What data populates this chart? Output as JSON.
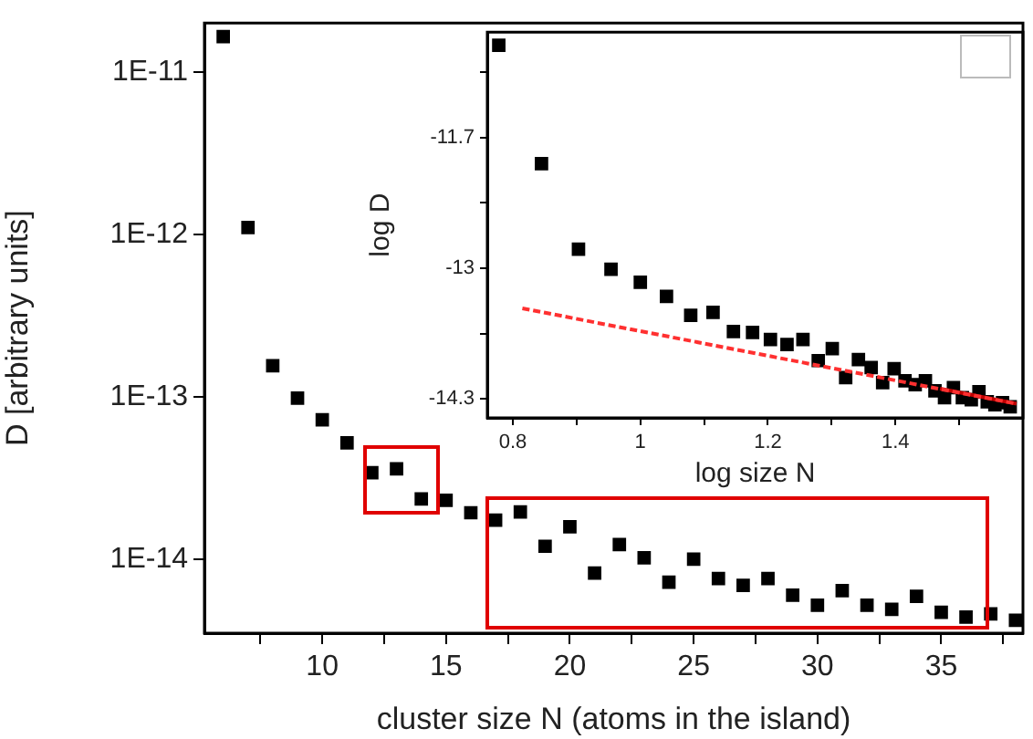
{
  "chart_data": [
    {
      "type": "scatter",
      "xlabel": "cluster size N (atoms in the island)",
      "ylabel": "D [arbitrary units]",
      "x": [
        6,
        7,
        8,
        9,
        10,
        11,
        12,
        13,
        14,
        15,
        16,
        17,
        18,
        19,
        20,
        21,
        22,
        23,
        24,
        25,
        26,
        27,
        28,
        29,
        30,
        31,
        32,
        33,
        34,
        35,
        36,
        37,
        38
      ],
      "values": [
        1.65e-11,
        1.1e-12,
        1.55e-13,
        9.8e-14,
        7.2e-14,
        5.2e-14,
        3.4e-14,
        3.6e-14,
        2.35e-14,
        2.3e-14,
        1.93e-14,
        1.74e-14,
        1.95e-14,
        1.2e-14,
        1.58e-14,
        8.2e-15,
        1.23e-14,
        1.02e-14,
        7.2e-15,
        1e-14,
        7.6e-15,
        6.9e-15,
        7.6e-15,
        6e-15,
        5.2e-15,
        6.4e-15,
        5.2e-15,
        4.9e-15,
        5.9e-15,
        4.7e-15,
        4.4e-15,
        4.6e-15,
        4.2e-15
      ],
      "color": "#000000",
      "marker": "square",
      "log": "y",
      "grid": false,
      "legend": false,
      "xlim": [
        5.24,
        38.3
      ],
      "ylim": [
        3.5e-15,
        2e-11
      ],
      "xticks": [
        {
          "value": 7.5,
          "label": null
        },
        10,
        {
          "value": 12.5,
          "label": null
        },
        15,
        {
          "value": 17.5,
          "label": null
        },
        20,
        {
          "value": 22.5,
          "label": null
        },
        25,
        {
          "value": 27.5,
          "label": null
        },
        30,
        {
          "value": 32.5,
          "label": null
        },
        35,
        {
          "value": 37.5,
          "label": null
        }
      ],
      "yticks": [
        {
          "value": 1e-14,
          "label": "1E-14"
        },
        {
          "value": 1e-13,
          "label": "1E-13"
        },
        {
          "value": 1e-12,
          "label": "1E-12"
        },
        {
          "value": 1e-11,
          "label": "1E-11"
        }
      ]
    },
    {
      "type": "scatter",
      "xlabel": "log size N",
      "ylabel": "log D",
      "grid": false,
      "legend": false,
      "xlim": [
        0.76,
        1.6
      ],
      "ylim": [
        -14.49,
        -10.65
      ],
      "xticks": [
        0.8,
        {
          "value": 0.9,
          "label": null
        },
        1.0,
        {
          "value": 1.1,
          "label": null
        },
        1.2,
        {
          "value": 1.3,
          "label": null
        },
        1.4,
        {
          "value": 1.5,
          "label": null
        }
      ],
      "yticks": [
        -14.3,
        {
          "value": -13.65,
          "label": null
        },
        -13.0,
        {
          "value": -12.35,
          "label": null
        },
        -11.7,
        {
          "value": -11.05,
          "label": null
        }
      ],
      "series": [
        {
          "type": "scatter",
          "marker": "square",
          "color": "#000000",
          "x": [
            0.778,
            0.845,
            0.903,
            0.954,
            1.0,
            1.041,
            1.079,
            1.114,
            1.146,
            1.176,
            1.204,
            1.23,
            1.255,
            1.279,
            1.301,
            1.322,
            1.342,
            1.362,
            1.38,
            1.398,
            1.415,
            1.431,
            1.447,
            1.462,
            1.477,
            1.491,
            1.505,
            1.519,
            1.531,
            1.544,
            1.556,
            1.568,
            1.58
          ],
          "values": [
            -10.78,
            -11.96,
            -12.81,
            -13.01,
            -13.14,
            -13.28,
            -13.47,
            -13.44,
            -13.63,
            -13.64,
            -13.71,
            -13.76,
            -13.71,
            -13.92,
            -13.8,
            -14.09,
            -13.91,
            -13.99,
            -14.14,
            -14.0,
            -14.12,
            -14.16,
            -14.12,
            -14.22,
            -14.29,
            -14.19,
            -14.29,
            -14.31,
            -14.23,
            -14.33,
            -14.36,
            -14.34,
            -14.38
          ]
        },
        {
          "type": "line",
          "color": "#ff3030",
          "line_style": "dashed",
          "x": [
            0.815,
            1.59
          ],
          "values": [
            -13.4,
            -14.35
          ]
        },
        {
          "type": "line",
          "color": "#c00000",
          "line_style": "solid",
          "x": [
            1.47,
            1.59
          ],
          "values": [
            -14.2,
            -14.35
          ]
        }
      ]
    }
  ]
}
